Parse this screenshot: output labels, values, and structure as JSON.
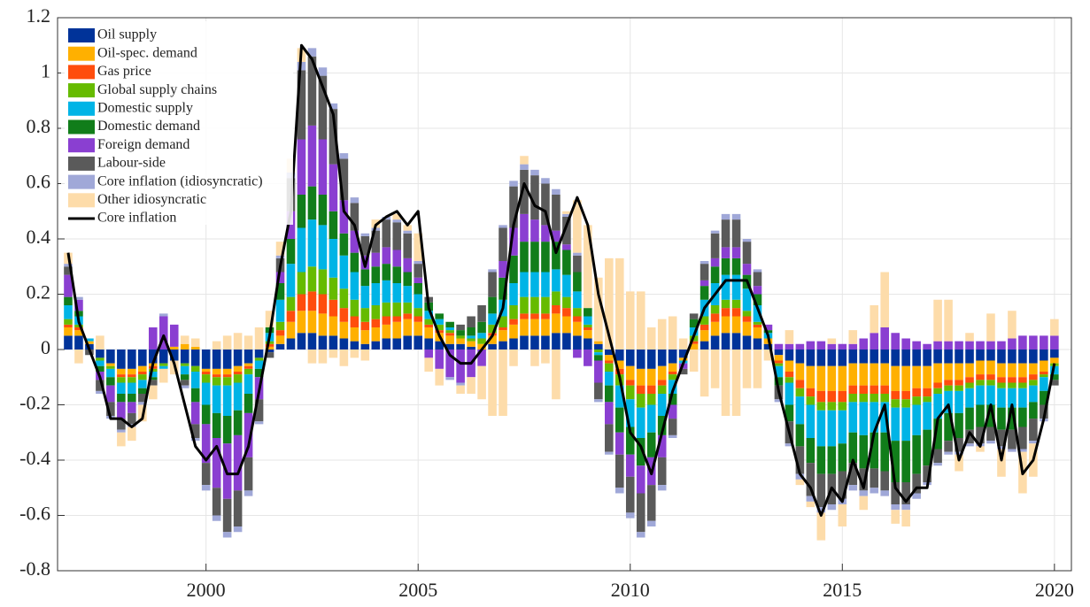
{
  "chart_data": {
    "type": "bar",
    "stacked": true,
    "grid": true,
    "legend": "upper-left",
    "xlim": [
      1996.5,
      2020.4
    ],
    "ylim": [
      -0.8,
      1.2
    ],
    "xticks": [
      2000,
      2005,
      2010,
      2015,
      2020
    ],
    "yticks": [
      -0.8,
      -0.6,
      -0.4,
      -0.2,
      0,
      0.2,
      0.4,
      0.6,
      0.8,
      1,
      1.2
    ],
    "x": [
      1996.75,
      1997,
      1997.25,
      1997.5,
      1997.75,
      1998,
      1998.25,
      1998.5,
      1998.75,
      1999,
      1999.25,
      1999.5,
      1999.75,
      2000,
      2000.25,
      2000.5,
      2000.75,
      2001,
      2001.25,
      2001.5,
      2001.75,
      2002,
      2002.25,
      2002.5,
      2002.75,
      2003,
      2003.25,
      2003.5,
      2003.75,
      2004,
      2004.25,
      2004.5,
      2004.75,
      2005,
      2005.25,
      2005.5,
      2005.75,
      2006,
      2006.25,
      2006.5,
      2006.75,
      2007,
      2007.25,
      2007.5,
      2007.75,
      2008,
      2008.25,
      2008.5,
      2008.75,
      2009,
      2009.25,
      2009.5,
      2009.75,
      2010,
      2010.25,
      2010.5,
      2010.75,
      2011,
      2011.25,
      2011.5,
      2011.75,
      2012,
      2012.25,
      2012.5,
      2012.75,
      2013,
      2013.25,
      2013.5,
      2013.75,
      2014,
      2014.25,
      2014.5,
      2014.75,
      2015,
      2015.25,
      2015.5,
      2015.75,
      2016,
      2016.25,
      2016.5,
      2016.75,
      2017,
      2017.25,
      2017.5,
      2017.75,
      2018,
      2018.25,
      2018.5,
      2018.75,
      2019,
      2019.25,
      2019.5,
      2019.75,
      2020
    ],
    "series": [
      {
        "name": "Oil supply",
        "color": "#003399",
        "values": [
          0.05,
          0.05,
          0.02,
          -0.03,
          -0.05,
          -0.07,
          -0.07,
          -0.06,
          -0.05,
          -0.05,
          -0.04,
          -0.05,
          -0.06,
          -0.07,
          -0.07,
          -0.07,
          -0.06,
          -0.05,
          -0.03,
          -0.01,
          0.02,
          0.04,
          0.06,
          0.06,
          0.05,
          0.05,
          0.04,
          0.03,
          0.02,
          0.03,
          0.04,
          0.04,
          0.05,
          0.05,
          0.04,
          0.03,
          0.02,
          0.02,
          0.01,
          0,
          0.02,
          0.03,
          0.04,
          0.05,
          0.05,
          0.05,
          0.06,
          0.06,
          0.05,
          0.04,
          0.02,
          -0.02,
          -0.04,
          -0.06,
          -0.07,
          -0.07,
          -0.06,
          -0.05,
          -0.03,
          0,
          0.03,
          0.05,
          0.06,
          0.06,
          0.05,
          0.04,
          0.02,
          -0.02,
          -0.04,
          -0.05,
          -0.06,
          -0.06,
          -0.06,
          -0.06,
          -0.05,
          -0.05,
          -0.05,
          -0.05,
          -0.06,
          -0.06,
          -0.06,
          -0.06,
          -0.05,
          -0.05,
          -0.05,
          -0.05,
          -0.04,
          -0.04,
          -0.05,
          -0.05,
          -0.05,
          -0.05,
          -0.04,
          -0.03
        ]
      },
      {
        "name": "Oil-spec. demand",
        "color": "#ffb000",
        "values": [
          0.03,
          0.02,
          0.01,
          0,
          -0.01,
          -0.02,
          -0.02,
          -0.02,
          -0.01,
          0,
          0.01,
          0.02,
          0.01,
          -0.01,
          -0.02,
          -0.02,
          -0.02,
          -0.01,
          0,
          0.01,
          0.03,
          0.06,
          0.08,
          0.08,
          0.08,
          0.07,
          0.06,
          0.05,
          0.05,
          0.05,
          0.05,
          0.06,
          0.06,
          0.05,
          0.04,
          0.03,
          0.03,
          0.02,
          0.02,
          0.02,
          0.03,
          0.04,
          0.05,
          0.06,
          0.06,
          0.06,
          0.07,
          0.06,
          0.05,
          0.03,
          0.01,
          -0.02,
          -0.03,
          -0.05,
          -0.06,
          -0.06,
          -0.05,
          -0.03,
          -0.01,
          0.02,
          0.04,
          0.05,
          0.06,
          0.06,
          0.05,
          0.04,
          0.02,
          -0.02,
          -0.04,
          -0.06,
          -0.08,
          -0.09,
          -0.09,
          -0.09,
          -0.08,
          -0.08,
          -0.08,
          -0.08,
          -0.09,
          -0.09,
          -0.08,
          -0.08,
          -0.07,
          -0.06,
          -0.06,
          -0.05,
          -0.05,
          -0.05,
          -0.05,
          -0.05,
          -0.05,
          -0.04,
          -0.04,
          -0.02
        ]
      },
      {
        "name": "Gas price",
        "color": "#ff4d0d",
        "values": [
          0.01,
          0.01,
          0,
          0,
          0,
          -0.01,
          -0.01,
          -0.01,
          -0.01,
          0,
          0,
          0,
          0,
          -0.01,
          -0.01,
          -0.01,
          -0.01,
          -0.01,
          0,
          0.01,
          0.02,
          0.04,
          0.06,
          0.07,
          0.07,
          0.06,
          0.05,
          0.04,
          0.03,
          0.03,
          0.03,
          0.02,
          0.02,
          0.02,
          0.01,
          0.01,
          0.01,
          0,
          0,
          0,
          0.01,
          0.01,
          0.02,
          0.02,
          0.02,
          0.02,
          0.03,
          0.03,
          0.02,
          0.01,
          0,
          -0.01,
          -0.02,
          -0.02,
          -0.03,
          -0.03,
          -0.02,
          -0.01,
          0,
          0.01,
          0.02,
          0.03,
          0.03,
          0.03,
          0.02,
          0.01,
          0,
          -0.01,
          -0.02,
          -0.03,
          -0.03,
          -0.04,
          -0.04,
          -0.04,
          -0.03,
          -0.03,
          -0.03,
          -0.03,
          -0.03,
          -0.03,
          -0.03,
          -0.03,
          -0.02,
          -0.02,
          -0.02,
          -0.02,
          -0.02,
          -0.02,
          -0.02,
          -0.02,
          -0.02,
          -0.02,
          -0.01,
          0
        ]
      },
      {
        "name": "Global supply chains",
        "color": "#66bb00",
        "values": [
          0.02,
          0.01,
          0,
          -0.01,
          -0.01,
          -0.02,
          -0.02,
          -0.02,
          -0.01,
          -0.01,
          0,
          -0.01,
          -0.02,
          -0.03,
          -0.03,
          -0.03,
          -0.03,
          -0.02,
          -0.01,
          0.01,
          0.03,
          0.05,
          0.08,
          0.09,
          0.09,
          0.08,
          0.07,
          0.06,
          0.05,
          0.05,
          0.05,
          0.05,
          0.04,
          0.03,
          0.02,
          0.02,
          0.01,
          0.01,
          0.01,
          0.02,
          0.03,
          0.04,
          0.05,
          0.06,
          0.06,
          0.06,
          0.05,
          0.04,
          0.03,
          0.01,
          -0.01,
          -0.03,
          -0.04,
          -0.05,
          -0.05,
          -0.04,
          -0.03,
          -0.02,
          0,
          0.02,
          0.03,
          0.03,
          0.03,
          0.03,
          0.02,
          0.01,
          0,
          -0.01,
          -0.02,
          -0.03,
          -0.03,
          -0.03,
          -0.03,
          -0.03,
          -0.03,
          -0.03,
          -0.03,
          -0.03,
          -0.03,
          -0.03,
          -0.03,
          -0.02,
          -0.02,
          -0.02,
          -0.02,
          -0.02,
          -0.02,
          -0.02,
          -0.02,
          -0.02,
          -0.02,
          -0.02,
          -0.01,
          -0.01
        ]
      },
      {
        "name": "Domestic supply",
        "color": "#00b4e6",
        "values": [
          0.05,
          0.03,
          0.01,
          -0.02,
          -0.03,
          -0.04,
          -0.04,
          -0.03,
          -0.02,
          -0.01,
          0,
          -0.03,
          -0.06,
          -0.08,
          -0.1,
          -0.11,
          -0.1,
          -0.07,
          -0.03,
          0.03,
          0.08,
          0.12,
          0.16,
          0.17,
          0.16,
          0.14,
          0.12,
          0.1,
          0.08,
          0.08,
          0.08,
          0.07,
          0.06,
          0.05,
          0.03,
          0.02,
          0.01,
          0,
          0.01,
          0.02,
          0.04,
          0.06,
          0.08,
          0.09,
          0.09,
          0.09,
          0.08,
          0.08,
          0.06,
          0.03,
          -0.01,
          -0.05,
          -0.08,
          -0.1,
          -0.11,
          -0.1,
          -0.08,
          -0.05,
          -0.01,
          0.03,
          0.06,
          0.08,
          0.09,
          0.09,
          0.08,
          0.06,
          0.02,
          -0.04,
          -0.08,
          -0.1,
          -0.12,
          -0.13,
          -0.13,
          -0.12,
          -0.11,
          -0.12,
          -0.11,
          -0.11,
          -0.12,
          -0.12,
          -0.11,
          -0.1,
          -0.09,
          -0.08,
          -0.08,
          -0.07,
          -0.07,
          -0.07,
          -0.07,
          -0.07,
          -0.07,
          -0.06,
          -0.05,
          -0.03
        ]
      },
      {
        "name": "Domestic demand",
        "color": "#117d1a",
        "values": [
          0.03,
          0.02,
          0,
          -0.02,
          -0.03,
          -0.03,
          -0.03,
          -0.02,
          -0.01,
          0,
          0,
          -0.02,
          -0.05,
          -0.07,
          -0.09,
          -0.1,
          -0.09,
          -0.07,
          -0.03,
          0.02,
          0.06,
          0.09,
          0.12,
          0.12,
          0.11,
          0.1,
          0.08,
          0.07,
          0.06,
          0.06,
          0.06,
          0.06,
          0.05,
          0.04,
          0.03,
          0.02,
          0.02,
          0.02,
          0.03,
          0.04,
          0.06,
          0.08,
          0.1,
          0.11,
          0.11,
          0.11,
          0.1,
          0.09,
          0.07,
          0.03,
          -0.02,
          -0.06,
          -0.09,
          -0.1,
          -0.1,
          -0.09,
          -0.07,
          -0.04,
          0,
          0.03,
          0.05,
          0.06,
          0.06,
          0.06,
          0.05,
          0.04,
          0.01,
          -0.03,
          -0.06,
          -0.08,
          -0.09,
          -0.1,
          -0.1,
          -0.1,
          -0.11,
          -0.12,
          -0.13,
          -0.14,
          -0.15,
          -0.15,
          -0.14,
          -0.13,
          -0.11,
          -0.1,
          -0.09,
          -0.08,
          -0.08,
          -0.08,
          -0.08,
          -0.08,
          -0.07,
          -0.06,
          -0.05,
          -0.02
        ]
      },
      {
        "name": "Foreign demand",
        "color": "#8a3fd1",
        "values": [
          0.08,
          0.04,
          0,
          -0.03,
          -0.06,
          -0.06,
          -0.04,
          0,
          0.08,
          0.12,
          0.08,
          0,
          -0.08,
          -0.14,
          -0.18,
          -0.2,
          -0.2,
          -0.16,
          -0.08,
          0,
          0.04,
          0.1,
          0.2,
          0.22,
          0.2,
          0.17,
          0.12,
          0.08,
          0.05,
          0.05,
          0.06,
          0.06,
          0.05,
          0.02,
          -0.03,
          -0.07,
          -0.1,
          -0.12,
          -0.1,
          -0.06,
          0,
          0.06,
          0.1,
          0.1,
          0.08,
          0.06,
          0.04,
          0.02,
          -0.03,
          -0.06,
          -0.08,
          -0.08,
          -0.08,
          -0.08,
          -0.1,
          -0.1,
          -0.08,
          -0.05,
          -0.02,
          0,
          0.02,
          0.03,
          0.04,
          0.04,
          0.04,
          0.03,
          0.02,
          0.02,
          0.02,
          0.02,
          0.03,
          0.03,
          0.02,
          0.02,
          0.02,
          0.04,
          0.06,
          0.08,
          0.06,
          0.04,
          0.03,
          0.02,
          0.03,
          0.03,
          0.03,
          0.03,
          0.03,
          0.03,
          0.03,
          0.04,
          0.05,
          0.05,
          0.05,
          0.05
        ]
      },
      {
        "name": "Labour-side",
        "color": "#5a5a5a",
        "values": [
          0.03,
          0,
          -0.02,
          -0.04,
          -0.05,
          -0.04,
          -0.04,
          -0.03,
          -0.02,
          0,
          0,
          -0.02,
          -0.05,
          -0.08,
          -0.1,
          -0.12,
          -0.13,
          -0.12,
          -0.08,
          -0.02,
          0.05,
          0.12,
          0.25,
          0.25,
          0.23,
          0.2,
          0.15,
          0.1,
          0.07,
          0.08,
          0.1,
          0.1,
          0.09,
          0.05,
          0.02,
          0,
          0,
          0.02,
          0.04,
          0.06,
          0.09,
          0.12,
          0.15,
          0.16,
          0.16,
          0.15,
          0.13,
          0.1,
          0.06,
          0,
          -0.06,
          -0.1,
          -0.12,
          -0.13,
          -0.14,
          -0.13,
          -0.1,
          -0.06,
          -0.02,
          0.02,
          0.06,
          0.09,
          0.1,
          0.1,
          0.08,
          0.05,
          0,
          -0.05,
          -0.08,
          -0.1,
          -0.12,
          -0.12,
          -0.11,
          -0.1,
          -0.08,
          -0.08,
          -0.07,
          -0.07,
          -0.08,
          -0.08,
          -0.07,
          -0.06,
          -0.05,
          -0.04,
          -0.05,
          -0.05,
          -0.06,
          -0.05,
          -0.06,
          -0.07,
          -0.08,
          -0.08,
          -0.05,
          -0.02
        ]
      },
      {
        "name": "Core inflation (idiosyncratic)",
        "color": "#a0a8d8",
        "values": [
          0.01,
          0.01,
          0,
          -0.01,
          -0.01,
          -0.01,
          -0.01,
          -0.01,
          0,
          0.01,
          0,
          -0.01,
          -0.01,
          -0.02,
          -0.02,
          -0.02,
          -0.02,
          -0.02,
          -0.01,
          0,
          0.01,
          0.02,
          0.03,
          0.03,
          0.03,
          0.02,
          0.02,
          0.02,
          0.01,
          0.01,
          0.01,
          0.01,
          0.01,
          0.01,
          0,
          0,
          -0.01,
          -0.01,
          0,
          0,
          0.01,
          0.01,
          0.02,
          0.02,
          0.02,
          0.02,
          0.02,
          0.01,
          0.01,
          0,
          -0.01,
          -0.01,
          -0.02,
          -0.02,
          -0.02,
          -0.02,
          -0.02,
          -0.01,
          0,
          0,
          0.01,
          0.01,
          0.02,
          0.02,
          0.01,
          0.01,
          0,
          -0.01,
          -0.01,
          -0.02,
          -0.02,
          -0.02,
          -0.02,
          -0.02,
          -0.02,
          -0.02,
          -0.02,
          -0.02,
          -0.02,
          -0.02,
          -0.02,
          -0.01,
          -0.01,
          -0.01,
          -0.01,
          -0.01,
          -0.01,
          -0.01,
          -0.01,
          -0.01,
          -0.01,
          -0.01,
          -0.01,
          0
        ]
      },
      {
        "name": "Other idiosyncratic",
        "color": "#fddcaa",
        "values": [
          0.04,
          -0.05,
          0,
          0.05,
          0,
          -0.05,
          -0.05,
          -0.06,
          -0.05,
          -0.05,
          -0.05,
          0.03,
          0.03,
          0,
          0.03,
          0.05,
          0.06,
          0.05,
          0.08,
          0.06,
          0.05,
          0.05,
          0.05,
          -0.05,
          -0.05,
          -0.03,
          -0.06,
          -0.03,
          -0.04,
          0.03,
          0,
          0.02,
          0.02,
          0.1,
          -0.05,
          -0.06,
          0,
          -0.03,
          -0.06,
          -0.12,
          -0.24,
          -0.24,
          -0.06,
          0.03,
          -0.06,
          -0.05,
          -0.18,
          0.01,
          0.19,
          0.3,
          0.23,
          0.33,
          0.33,
          0.21,
          0.21,
          0.08,
          0.11,
          0.12,
          0.04,
          -0.08,
          -0.17,
          -0.14,
          -0.24,
          -0.24,
          -0.14,
          -0.14,
          -0.04,
          0,
          0.05,
          -0.02,
          -0.02,
          -0.1,
          0.02,
          -0.08,
          0.05,
          -0.05,
          0.1,
          0.2,
          -0.05,
          -0.06,
          0,
          0,
          0.15,
          0.15,
          -0.06,
          0.03,
          -0.02,
          0.1,
          -0.1,
          0.1,
          -0.15,
          -0.12,
          0,
          0.06
        ]
      },
      {
        "name": "Core inflation",
        "type": "line",
        "color": "#000000",
        "values": [
          0.35,
          0.1,
          0,
          -0.1,
          -0.25,
          -0.25,
          -0.28,
          -0.25,
          -0.05,
          0.05,
          -0.05,
          -0.2,
          -0.35,
          -0.4,
          -0.35,
          -0.45,
          -0.45,
          -0.35,
          -0.15,
          0.05,
          0.3,
          0.5,
          1.1,
          1.05,
          0.95,
          0.85,
          0.5,
          0.45,
          0.3,
          0.45,
          0.48,
          0.5,
          0.45,
          0.5,
          0.15,
          0.05,
          -0.02,
          -0.05,
          -0.05,
          0,
          0.05,
          0.15,
          0.45,
          0.6,
          0.52,
          0.5,
          0.35,
          0.45,
          0.55,
          0.45,
          0.2,
          0.05,
          -0.1,
          -0.3,
          -0.35,
          -0.45,
          -0.3,
          -0.15,
          -0.05,
          0.05,
          0.15,
          0.2,
          0.25,
          0.25,
          0.25,
          0.15,
          0.05,
          -0.15,
          -0.3,
          -0.45,
          -0.5,
          -0.6,
          -0.5,
          -0.55,
          -0.4,
          -0.5,
          -0.3,
          -0.2,
          -0.5,
          -0.55,
          -0.5,
          -0.5,
          -0.25,
          -0.2,
          -0.4,
          -0.3,
          -0.35,
          -0.2,
          -0.4,
          -0.2,
          -0.45,
          -0.4,
          -0.25,
          -0.05
        ]
      }
    ]
  }
}
